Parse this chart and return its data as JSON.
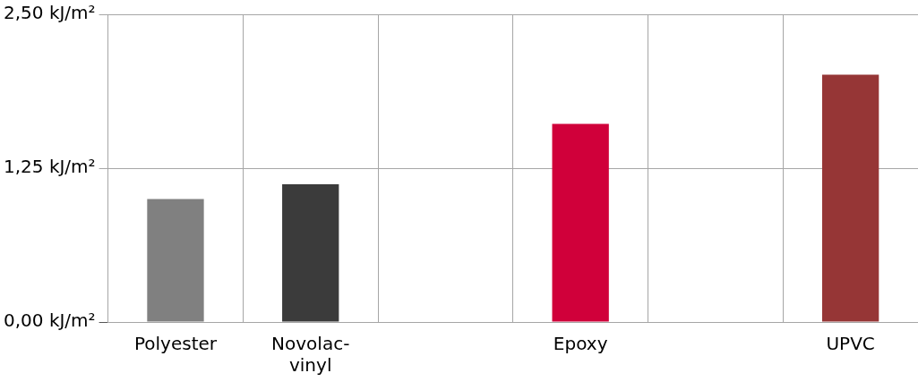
{
  "chart_data": {
    "type": "bar",
    "categories": [
      "Polyester",
      "Novolac-vinyl",
      null,
      "Epoxy",
      null,
      "UPVC"
    ],
    "values": [
      1.0,
      1.12,
      null,
      1.61,
      null,
      2.01
    ],
    "colors": [
      "#808080",
      "#3b3b3b",
      "#d0003a",
      "#d0003a",
      "#963636",
      "#963636"
    ],
    "ylim": [
      0,
      2.5
    ],
    "yticks": [
      {
        "value": 0,
        "label": "0,00 kJ/m²"
      },
      {
        "value": 1.25,
        "label": "1,25 kJ/m²"
      },
      {
        "value": 2.5,
        "label": "2,50 kJ/m²"
      }
    ],
    "grid": true,
    "legend": false
  }
}
